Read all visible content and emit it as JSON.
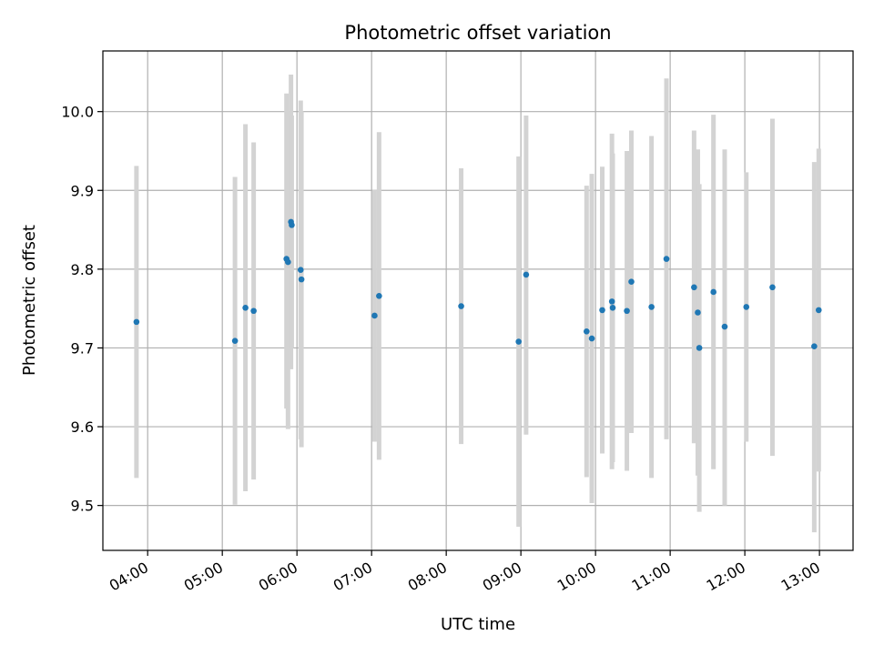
{
  "chart_data": {
    "type": "scatter",
    "title": "Photometric offset variation",
    "xlabel": "UTC time",
    "ylabel": "Photometric offset",
    "x_unit": "hours UTC",
    "xlim": [
      3.4,
      13.45
    ],
    "ylim": [
      9.443,
      10.077
    ],
    "grid": true,
    "x_ticks": [
      {
        "value": 4,
        "label": "04:00"
      },
      {
        "value": 5,
        "label": "05:00"
      },
      {
        "value": 6,
        "label": "06:00"
      },
      {
        "value": 7,
        "label": "07:00"
      },
      {
        "value": 8,
        "label": "08:00"
      },
      {
        "value": 9,
        "label": "09:00"
      },
      {
        "value": 10,
        "label": "10:00"
      },
      {
        "value": 11,
        "label": "11:00"
      },
      {
        "value": 12,
        "label": "12:00"
      },
      {
        "value": 13,
        "label": "13:00"
      }
    ],
    "y_ticks": [
      {
        "value": 9.5,
        "label": "9.5"
      },
      {
        "value": 9.6,
        "label": "9.6"
      },
      {
        "value": 9.7,
        "label": "9.7"
      },
      {
        "value": 9.8,
        "label": "9.8"
      },
      {
        "value": 9.9,
        "label": "9.9"
      },
      {
        "value": 10.0,
        "label": "10.0"
      }
    ],
    "colors": {
      "point": "#1f77b4",
      "errorbar": "#d3d3d3",
      "grid": "#b0b0b0",
      "axis": "#000000"
    },
    "points": [
      {
        "x": 3.85,
        "y": 9.733,
        "lo": 9.535,
        "hi": 9.931
      },
      {
        "x": 5.17,
        "y": 9.709,
        "lo": 9.501,
        "hi": 9.917
      },
      {
        "x": 5.31,
        "y": 9.751,
        "lo": 9.518,
        "hi": 9.984
      },
      {
        "x": 5.42,
        "y": 9.747,
        "lo": 9.533,
        "hi": 9.961
      },
      {
        "x": 5.86,
        "y": 9.813,
        "lo": 9.623,
        "hi": 10.023
      },
      {
        "x": 5.88,
        "y": 9.809,
        "lo": 9.597,
        "hi": 10.0
      },
      {
        "x": 5.92,
        "y": 9.86,
        "lo": 9.673,
        "hi": 10.047
      },
      {
        "x": 5.93,
        "y": 9.856,
        "lo": 9.7,
        "hi": 9.995
      },
      {
        "x": 6.05,
        "y": 9.799,
        "lo": 9.584,
        "hi": 10.014
      },
      {
        "x": 6.06,
        "y": 9.787,
        "lo": 9.574,
        "hi": 10.0
      },
      {
        "x": 7.04,
        "y": 9.741,
        "lo": 9.581,
        "hi": 9.901
      },
      {
        "x": 7.1,
        "y": 9.766,
        "lo": 9.558,
        "hi": 9.974
      },
      {
        "x": 8.2,
        "y": 9.753,
        "lo": 9.578,
        "hi": 9.928
      },
      {
        "x": 8.97,
        "y": 9.708,
        "lo": 9.473,
        "hi": 9.943
      },
      {
        "x": 9.07,
        "y": 9.793,
        "lo": 9.59,
        "hi": 9.995
      },
      {
        "x": 9.88,
        "y": 9.721,
        "lo": 9.536,
        "hi": 9.906
      },
      {
        "x": 9.95,
        "y": 9.712,
        "lo": 9.503,
        "hi": 9.921
      },
      {
        "x": 10.09,
        "y": 9.748,
        "lo": 9.566,
        "hi": 9.93
      },
      {
        "x": 10.22,
        "y": 9.759,
        "lo": 9.546,
        "hi": 9.972
      },
      {
        "x": 10.23,
        "y": 9.751,
        "lo": 9.555,
        "hi": 9.947
      },
      {
        "x": 10.42,
        "y": 9.747,
        "lo": 9.544,
        "hi": 9.95
      },
      {
        "x": 10.48,
        "y": 9.784,
        "lo": 9.592,
        "hi": 9.976
      },
      {
        "x": 10.75,
        "y": 9.752,
        "lo": 9.535,
        "hi": 9.969
      },
      {
        "x": 10.95,
        "y": 9.813,
        "lo": 9.584,
        "hi": 10.042
      },
      {
        "x": 11.32,
        "y": 9.777,
        "lo": 9.579,
        "hi": 9.976
      },
      {
        "x": 11.37,
        "y": 9.745,
        "lo": 9.538,
        "hi": 9.952
      },
      {
        "x": 11.39,
        "y": 9.7,
        "lo": 9.492,
        "hi": 9.908
      },
      {
        "x": 11.58,
        "y": 9.771,
        "lo": 9.546,
        "hi": 9.996
      },
      {
        "x": 11.73,
        "y": 9.727,
        "lo": 9.5,
        "hi": 9.952
      },
      {
        "x": 12.02,
        "y": 9.752,
        "lo": 9.581,
        "hi": 9.923
      },
      {
        "x": 12.37,
        "y": 9.777,
        "lo": 9.563,
        "hi": 9.991
      },
      {
        "x": 12.93,
        "y": 9.702,
        "lo": 9.466,
        "hi": 9.936
      },
      {
        "x": 12.99,
        "y": 9.748,
        "lo": 9.543,
        "hi": 9.953
      }
    ]
  }
}
